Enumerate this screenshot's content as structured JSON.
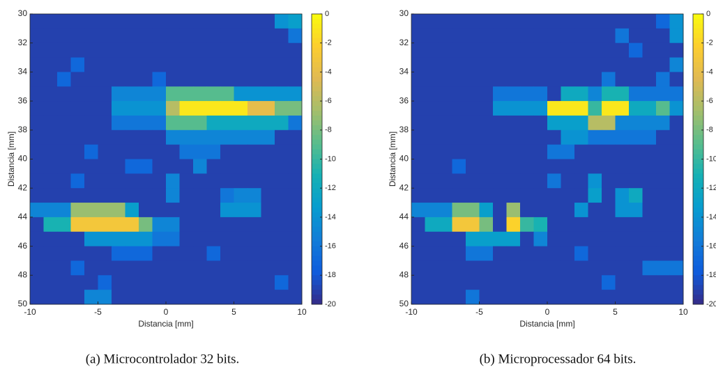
{
  "chart_data": [
    {
      "type": "heatmap",
      "caption": "(a) Microcontrolador 32 bits.",
      "xlabel": "Distancia [mm]",
      "ylabel": "Distancia [mm]",
      "xlim": [
        -10,
        10
      ],
      "ylim": [
        30,
        50
      ],
      "y_reversed": true,
      "xticks": [
        -10,
        -5,
        0,
        5,
        10
      ],
      "yticks": [
        30,
        32,
        34,
        36,
        38,
        40,
        42,
        44,
        46,
        48,
        50
      ],
      "colormap": "parula",
      "clim": [
        -20,
        0
      ],
      "cticks": [
        0,
        -2,
        -4,
        -6,
        -8,
        -10,
        -12,
        -14,
        -16,
        -18,
        -20
      ],
      "x": [
        -9.5,
        -8.5,
        -7.5,
        -6.5,
        -5.5,
        -4.5,
        -3.5,
        -2.5,
        -1.5,
        -0.5,
        0.5,
        1.5,
        2.5,
        3.5,
        4.5,
        5.5,
        6.5,
        7.5,
        8.5,
        9.5
      ],
      "y": [
        30.5,
        31.5,
        32.5,
        33.5,
        34.5,
        35.5,
        36.5,
        37.5,
        38.5,
        39.5,
        40.5,
        41.5,
        42.5,
        43.5,
        44.5,
        45.5,
        46.5,
        47.5,
        48.5,
        49.5
      ],
      "z": [
        [
          -19,
          -19,
          -19,
          -19,
          -19,
          -19,
          -19,
          -19,
          -19,
          -19,
          -19,
          -19,
          -19,
          -19,
          -19,
          -19,
          -19,
          -19,
          -14,
          -13
        ],
        [
          -19,
          -19,
          -19,
          -19,
          -19,
          -19,
          -19,
          -19,
          -19,
          -19,
          -19,
          -19,
          -19,
          -19,
          -19,
          -19,
          -19,
          -19,
          -19,
          -16
        ],
        [
          -19,
          -19,
          -19,
          -19,
          -19,
          -19,
          -19,
          -19,
          -19,
          -19,
          -19,
          -19,
          -19,
          -19,
          -19,
          -19,
          -19,
          -19,
          -19,
          -19
        ],
        [
          -19,
          -19,
          -19,
          -17,
          -19,
          -19,
          -19,
          -19,
          -19,
          -19,
          -19,
          -19,
          -19,
          -19,
          -19,
          -19,
          -19,
          -19,
          -19,
          -19
        ],
        [
          -19,
          -19,
          -17,
          -19,
          -19,
          -19,
          -19,
          -19,
          -19,
          -17,
          -19,
          -19,
          -19,
          -19,
          -19,
          -19,
          -19,
          -19,
          -19,
          -19
        ],
        [
          -19,
          -19,
          -19,
          -19,
          -19,
          -19,
          -15,
          -15,
          -15,
          -15,
          -9,
          -9,
          -9,
          -9,
          -9,
          -14,
          -14,
          -14,
          -14,
          -14
        ],
        [
          -19,
          -19,
          -19,
          -19,
          -19,
          -19,
          -14,
          -14,
          -14,
          -14,
          -6,
          -1,
          -1,
          -1,
          -1,
          -1,
          -4,
          -4,
          -8,
          -8
        ],
        [
          -19,
          -19,
          -19,
          -19,
          -19,
          -19,
          -16,
          -16,
          -16,
          -16,
          -9,
          -9,
          -9,
          -12,
          -12,
          -12,
          -12,
          -12,
          -12,
          -16
        ],
        [
          -19,
          -19,
          -19,
          -19,
          -19,
          -19,
          -19,
          -19,
          -19,
          -19,
          -15,
          -15,
          -15,
          -15,
          -15,
          -15,
          -15,
          -15,
          -19,
          -19
        ],
        [
          -19,
          -19,
          -19,
          -19,
          -17,
          -19,
          -19,
          -19,
          -19,
          -19,
          -19,
          -16,
          -16,
          -16,
          -19,
          -19,
          -19,
          -19,
          -19,
          -19
        ],
        [
          -19,
          -19,
          -19,
          -19,
          -19,
          -19,
          -19,
          -17,
          -17,
          -19,
          -19,
          -19,
          -15,
          -19,
          -19,
          -19,
          -19,
          -19,
          -19,
          -19
        ],
        [
          -19,
          -19,
          -19,
          -17,
          -19,
          -19,
          -19,
          -19,
          -19,
          -19,
          -15,
          -19,
          -19,
          -19,
          -19,
          -19,
          -19,
          -19,
          -19,
          -19
        ],
        [
          -19,
          -19,
          -19,
          -19,
          -19,
          -19,
          -19,
          -19,
          -19,
          -19,
          -15,
          -19,
          -19,
          -19,
          -16,
          -15,
          -15,
          -19,
          -19,
          -19
        ],
        [
          -15,
          -15,
          -15,
          -7,
          -7,
          -7,
          -7,
          -13,
          -19,
          -19,
          -19,
          -19,
          -19,
          -19,
          -14,
          -14,
          -14,
          -19,
          -19,
          -19
        ],
        [
          -19,
          -11,
          -11,
          -3,
          -3,
          -3,
          -3,
          -3,
          -8,
          -15,
          -15,
          -19,
          -19,
          -19,
          -19,
          -19,
          -19,
          -19,
          -19,
          -19
        ],
        [
          -19,
          -19,
          -19,
          -19,
          -14,
          -14,
          -14,
          -14,
          -14,
          -16,
          -16,
          -19,
          -19,
          -19,
          -19,
          -19,
          -19,
          -19,
          -19,
          -19
        ],
        [
          -19,
          -19,
          -19,
          -19,
          -19,
          -19,
          -17,
          -17,
          -17,
          -19,
          -19,
          -19,
          -19,
          -17,
          -19,
          -19,
          -19,
          -19,
          -19,
          -19
        ],
        [
          -19,
          -19,
          -19,
          -17,
          -19,
          -19,
          -19,
          -19,
          -19,
          -19,
          -19,
          -19,
          -19,
          -19,
          -19,
          -19,
          -19,
          -19,
          -19,
          -19
        ],
        [
          -19,
          -19,
          -19,
          -19,
          -19,
          -17,
          -19,
          -19,
          -19,
          -19,
          -19,
          -19,
          -19,
          -19,
          -19,
          -19,
          -19,
          -19,
          -17,
          -19
        ],
        [
          -19,
          -19,
          -19,
          -19,
          -15,
          -15,
          -19,
          -19,
          -19,
          -19,
          -19,
          -19,
          -19,
          -19,
          -19,
          -19,
          -19,
          -19,
          -19,
          -19
        ]
      ]
    },
    {
      "type": "heatmap",
      "caption": "(b) Microprocessador 64 bits.",
      "xlabel": "Distancia [mm]",
      "ylabel": "Distancia [mm]",
      "xlim": [
        -10,
        10
      ],
      "ylim": [
        30,
        50
      ],
      "y_reversed": true,
      "xticks": [
        -10,
        -5,
        0,
        5,
        10
      ],
      "yticks": [
        30,
        32,
        34,
        36,
        38,
        40,
        42,
        44,
        46,
        48,
        50
      ],
      "colormap": "parula",
      "clim": [
        -20,
        0
      ],
      "cticks": [
        0,
        -2,
        -4,
        -6,
        -8,
        -10,
        -12,
        -14,
        -16,
        -18,
        -20
      ],
      "x": [
        -9.5,
        -8.5,
        -7.5,
        -6.5,
        -5.5,
        -4.5,
        -3.5,
        -2.5,
        -1.5,
        -0.5,
        0.5,
        1.5,
        2.5,
        3.5,
        4.5,
        5.5,
        6.5,
        7.5,
        8.5,
        9.5
      ],
      "y": [
        30.5,
        31.5,
        32.5,
        33.5,
        34.5,
        35.5,
        36.5,
        37.5,
        38.5,
        39.5,
        40.5,
        41.5,
        42.5,
        43.5,
        44.5,
        45.5,
        46.5,
        47.5,
        48.5,
        49.5
      ],
      "z": [
        [
          -19,
          -19,
          -19,
          -19,
          -19,
          -19,
          -19,
          -19,
          -19,
          -19,
          -19,
          -19,
          -19,
          -19,
          -19,
          -19,
          -19,
          -19,
          -17,
          -14
        ],
        [
          -19,
          -19,
          -19,
          -19,
          -19,
          -19,
          -19,
          -19,
          -19,
          -19,
          -19,
          -19,
          -19,
          -19,
          -19,
          -16,
          -19,
          -19,
          -19,
          -14
        ],
        [
          -19,
          -19,
          -19,
          -19,
          -19,
          -19,
          -19,
          -19,
          -19,
          -19,
          -19,
          -19,
          -19,
          -19,
          -19,
          -19,
          -17,
          -19,
          -19,
          -19
        ],
        [
          -19,
          -19,
          -19,
          -19,
          -19,
          -19,
          -19,
          -19,
          -19,
          -19,
          -19,
          -19,
          -19,
          -19,
          -19,
          -19,
          -19,
          -19,
          -19,
          -15
        ],
        [
          -19,
          -19,
          -19,
          -19,
          -19,
          -19,
          -19,
          -19,
          -19,
          -19,
          -19,
          -19,
          -19,
          -19,
          -16,
          -19,
          -19,
          -19,
          -16,
          -19
        ],
        [
          -19,
          -19,
          -19,
          -19,
          -19,
          -19,
          -16,
          -16,
          -16,
          -16,
          -19,
          -12,
          -12,
          -15,
          -11,
          -11,
          -16,
          -16,
          -16,
          -16
        ],
        [
          -19,
          -19,
          -19,
          -19,
          -19,
          -19,
          -14,
          -14,
          -14,
          -14,
          -1,
          -1,
          -1,
          -10,
          -1,
          -1,
          -12,
          -12,
          -9,
          -14
        ],
        [
          -19,
          -19,
          -19,
          -19,
          -19,
          -19,
          -19,
          -19,
          -19,
          -19,
          -13,
          -13,
          -13,
          -6,
          -6,
          -15,
          -15,
          -15,
          -15,
          -19
        ],
        [
          -19,
          -19,
          -19,
          -19,
          -19,
          -19,
          -19,
          -19,
          -19,
          -19,
          -19,
          -14,
          -14,
          -16,
          -16,
          -16,
          -16,
          -16,
          -19,
          -19
        ],
        [
          -19,
          -19,
          -19,
          -19,
          -19,
          -19,
          -19,
          -19,
          -19,
          -19,
          -16,
          -16,
          -19,
          -19,
          -19,
          -19,
          -19,
          -19,
          -19,
          -19
        ],
        [
          -19,
          -19,
          -19,
          -17,
          -19,
          -19,
          -19,
          -19,
          -19,
          -19,
          -19,
          -19,
          -19,
          -19,
          -19,
          -19,
          -19,
          -19,
          -19,
          -19
        ],
        [
          -19,
          -19,
          -19,
          -19,
          -19,
          -19,
          -19,
          -19,
          -19,
          -19,
          -16,
          -19,
          -19,
          -14,
          -19,
          -19,
          -19,
          -19,
          -19,
          -19
        ],
        [
          -19,
          -19,
          -19,
          -19,
          -19,
          -19,
          -19,
          -19,
          -19,
          -19,
          -19,
          -19,
          -19,
          -13,
          -19,
          -14,
          -12,
          -19,
          -19,
          -19
        ],
        [
          -15,
          -15,
          -15,
          -8,
          -8,
          -13,
          -19,
          -7,
          -19,
          -19,
          -19,
          -19,
          -14,
          -19,
          -19,
          -14,
          -14,
          -19,
          -19,
          -19
        ],
        [
          -19,
          -12,
          -12,
          -3,
          -3,
          -8,
          -19,
          -2,
          -10,
          -11,
          -19,
          -19,
          -19,
          -19,
          -19,
          -19,
          -19,
          -19,
          -19,
          -19
        ],
        [
          -19,
          -19,
          -19,
          -19,
          -13,
          -13,
          -13,
          -13,
          -19,
          -15,
          -19,
          -19,
          -19,
          -19,
          -19,
          -19,
          -19,
          -19,
          -19,
          -19
        ],
        [
          -19,
          -19,
          -19,
          -19,
          -16,
          -16,
          -19,
          -19,
          -19,
          -19,
          -19,
          -19,
          -17,
          -19,
          -19,
          -19,
          -19,
          -19,
          -19,
          -19
        ],
        [
          -19,
          -19,
          -19,
          -19,
          -19,
          -19,
          -19,
          -19,
          -19,
          -19,
          -19,
          -19,
          -19,
          -19,
          -19,
          -19,
          -19,
          -16,
          -16,
          -16
        ],
        [
          -19,
          -19,
          -19,
          -19,
          -19,
          -19,
          -19,
          -19,
          -19,
          -19,
          -19,
          -19,
          -19,
          -19,
          -17,
          -19,
          -19,
          -19,
          -19,
          -19
        ],
        [
          -19,
          -19,
          -19,
          -19,
          -16,
          -19,
          -19,
          -19,
          -19,
          -19,
          -19,
          -19,
          -19,
          -19,
          -19,
          -19,
          -19,
          -19,
          -19,
          -19
        ]
      ]
    }
  ]
}
